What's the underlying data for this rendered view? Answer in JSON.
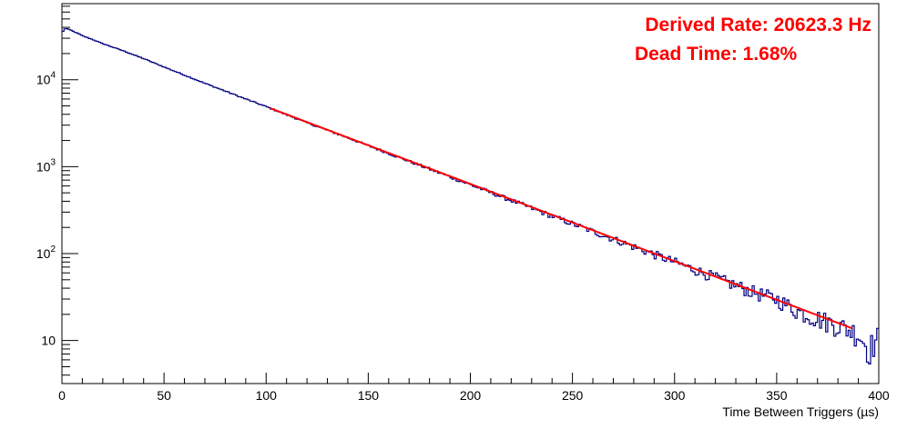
{
  "chart_data": {
    "type": "histogram",
    "title": "",
    "xlabel": "Time Between Triggers (µs)",
    "ylabel": "",
    "xlim": [
      0,
      400
    ],
    "ylim": [
      3.2,
      75000
    ],
    "y_scale": "log",
    "grid": false,
    "x_ticks": [
      0,
      50,
      100,
      150,
      200,
      250,
      300,
      350,
      400
    ],
    "x_tick_labels": [
      "0",
      "50",
      "100",
      "150",
      "200",
      "250",
      "300",
      "350",
      "400"
    ],
    "y_ticks": [
      10,
      100,
      1000,
      10000
    ],
    "y_tick_labels": [
      {
        "base": "10",
        "exp": ""
      },
      {
        "base": "10",
        "exp": "2"
      },
      {
        "base": "10",
        "exp": "3"
      },
      {
        "base": "10",
        "exp": "4"
      }
    ],
    "series": [
      {
        "type": "histogram",
        "color": "#000080",
        "bin_width": 1,
        "x": [
          0,
          1,
          2,
          3,
          4,
          5,
          6,
          8,
          10,
          15,
          20,
          30,
          40,
          50,
          60,
          70,
          80,
          90,
          100,
          120,
          140,
          160,
          180,
          200,
          220,
          240,
          260,
          280,
          300,
          320,
          340,
          350,
          360,
          370,
          380,
          390,
          395,
          400
        ],
        "values": [
          34000,
          38000,
          39000,
          38000,
          37500,
          36500,
          35500,
          34000,
          32000,
          29000,
          26000,
          21500,
          17500,
          14000,
          11300,
          9100,
          7400,
          6000,
          4900,
          3200,
          2150,
          1420,
          940,
          620,
          410,
          270,
          180,
          120,
          80,
          53,
          35,
          30,
          22,
          18,
          15,
          12,
          8,
          11
        ]
      },
      {
        "type": "fit",
        "color": "#ff0000",
        "x": [
          102,
          387
        ],
        "values": [
          4700,
          13.8
        ]
      }
    ],
    "annotations": [
      {
        "text": "Derived Rate: 20623.3 Hz",
        "color": "#ff0000"
      },
      {
        "text": "Dead Time: 1.68%",
        "color": "#ff0000"
      }
    ]
  }
}
